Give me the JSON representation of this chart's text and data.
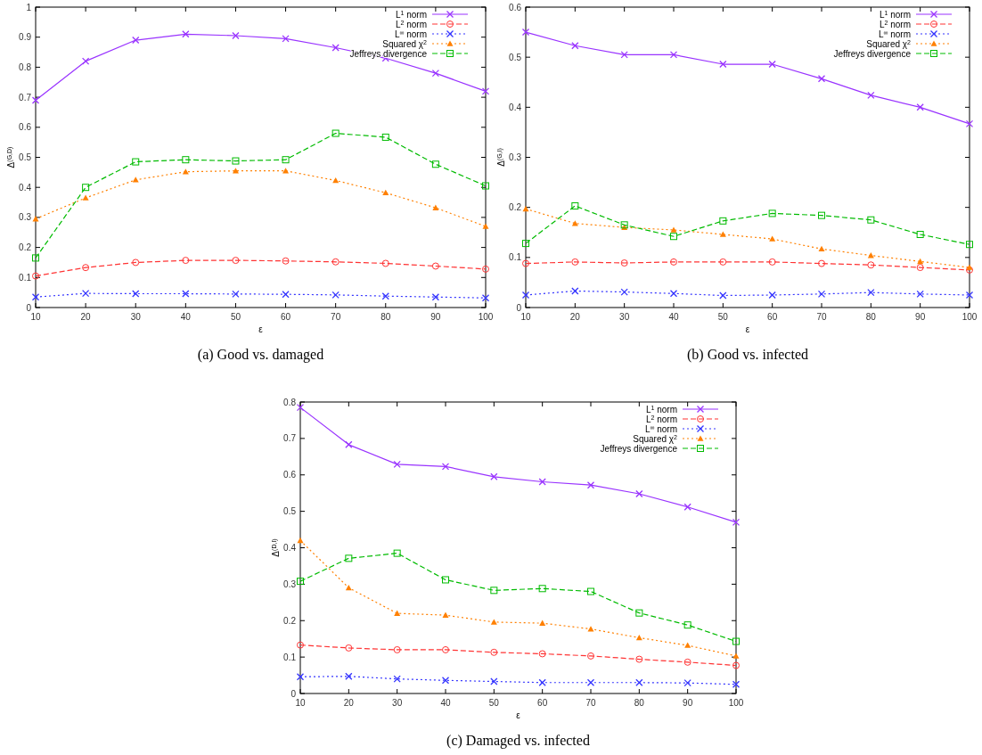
{
  "chart_data": [
    {
      "type": "line",
      "title": "(a) Good vs. damaged",
      "xlabel": "ε",
      "ylabel": "Δ$^{(G,D)}$",
      "x": [
        10,
        20,
        30,
        40,
        50,
        60,
        70,
        80,
        90,
        100
      ],
      "xlim": [
        10,
        100
      ],
      "xticks": [
        10,
        20,
        30,
        40,
        50,
        60,
        70,
        80,
        90,
        100
      ],
      "ylim": [
        0,
        1
      ],
      "yticks": [
        0,
        0.1,
        0.2,
        0.3,
        0.4,
        0.5,
        0.6,
        0.7,
        0.8,
        0.9,
        1
      ],
      "grid": false,
      "legend": "top right",
      "series": [
        {
          "name": "L$^{1}$ norm",
          "color": "#9933ff",
          "marker": "cross",
          "line_style": "solid",
          "values": [
            0.69,
            0.82,
            0.89,
            0.91,
            0.905,
            0.895,
            0.865,
            0.83,
            0.78,
            0.72
          ]
        },
        {
          "name": "L$^{2}$ norm",
          "color": "#ff3333",
          "marker": "circle",
          "line_style": "dashed",
          "values": [
            0.105,
            0.133,
            0.15,
            0.157,
            0.157,
            0.155,
            0.152,
            0.147,
            0.138,
            0.128
          ]
        },
        {
          "name": "L$^{∞}$ norm",
          "color": "#3333ff",
          "marker": "cross",
          "line_style": "dotted",
          "values": [
            0.035,
            0.047,
            0.046,
            0.046,
            0.045,
            0.044,
            0.042,
            0.038,
            0.035,
            0.032
          ]
        },
        {
          "name": "Squared χ$^{2}$",
          "color": "#ff8000",
          "marker": "triangle",
          "line_style": "dotted",
          "values": [
            0.295,
            0.365,
            0.425,
            0.452,
            0.455,
            0.455,
            0.423,
            0.382,
            0.332,
            0.27
          ]
        },
        {
          "name": "Jeffreys divergence",
          "color": "#00bb00",
          "marker": "square",
          "line_style": "dashed",
          "values": [
            0.165,
            0.4,
            0.485,
            0.492,
            0.488,
            0.492,
            0.58,
            0.567,
            0.477,
            0.405
          ]
        }
      ]
    },
    {
      "type": "line",
      "title": "(b) Good vs. infected",
      "xlabel": "ε",
      "ylabel": "Δ$^{(G,I)}$",
      "x": [
        10,
        20,
        30,
        40,
        50,
        60,
        70,
        80,
        90,
        100
      ],
      "xlim": [
        10,
        100
      ],
      "xticks": [
        10,
        20,
        30,
        40,
        50,
        60,
        70,
        80,
        90,
        100
      ],
      "ylim": [
        0,
        0.6
      ],
      "yticks": [
        0,
        0.1,
        0.2,
        0.3,
        0.4,
        0.5,
        0.6
      ],
      "grid": false,
      "legend": "top right",
      "series": [
        {
          "name": "L$^{1}$ norm",
          "color": "#9933ff",
          "marker": "cross",
          "line_style": "solid",
          "values": [
            0.55,
            0.523,
            0.505,
            0.505,
            0.486,
            0.486,
            0.457,
            0.424,
            0.4,
            0.367
          ]
        },
        {
          "name": "L$^{2}$ norm",
          "color": "#ff3333",
          "marker": "circle",
          "line_style": "dashed",
          "values": [
            0.088,
            0.091,
            0.089,
            0.091,
            0.091,
            0.091,
            0.088,
            0.085,
            0.08,
            0.075
          ]
        },
        {
          "name": "L$^{∞}$ norm",
          "color": "#3333ff",
          "marker": "cross",
          "line_style": "dotted",
          "values": [
            0.025,
            0.033,
            0.031,
            0.028,
            0.024,
            0.025,
            0.027,
            0.03,
            0.027,
            0.025
          ]
        },
        {
          "name": "Squared χ$^{2}$",
          "color": "#ff8000",
          "marker": "triangle",
          "line_style": "dotted",
          "values": [
            0.197,
            0.168,
            0.16,
            0.155,
            0.146,
            0.137,
            0.117,
            0.104,
            0.092,
            0.08
          ]
        },
        {
          "name": "Jeffreys divergence",
          "color": "#00bb00",
          "marker": "square",
          "line_style": "dashed",
          "values": [
            0.128,
            0.203,
            0.165,
            0.142,
            0.173,
            0.188,
            0.184,
            0.175,
            0.146,
            0.126
          ]
        }
      ]
    },
    {
      "type": "line",
      "title": "(c) Damaged vs. infected",
      "xlabel": "ε",
      "ylabel": "Δ$^{(D,I)}$",
      "x": [
        10,
        20,
        30,
        40,
        50,
        60,
        70,
        80,
        90,
        100
      ],
      "xlim": [
        10,
        100
      ],
      "xticks": [
        10,
        20,
        30,
        40,
        50,
        60,
        70,
        80,
        90,
        100
      ],
      "ylim": [
        0,
        0.8
      ],
      "yticks": [
        0,
        0.1,
        0.2,
        0.3,
        0.4,
        0.5,
        0.6,
        0.7,
        0.8
      ],
      "grid": false,
      "legend": "top right",
      "series": [
        {
          "name": "L$^{1}$ norm",
          "color": "#9933ff",
          "marker": "cross",
          "line_style": "solid",
          "values": [
            0.785,
            0.683,
            0.629,
            0.623,
            0.595,
            0.581,
            0.572,
            0.548,
            0.512,
            0.47
          ]
        },
        {
          "name": "L$^{2}$ norm",
          "color": "#ff3333",
          "marker": "circle",
          "line_style": "dashed",
          "values": [
            0.133,
            0.125,
            0.12,
            0.12,
            0.113,
            0.109,
            0.103,
            0.094,
            0.086,
            0.077
          ]
        },
        {
          "name": "L$^{∞}$ norm",
          "color": "#3333ff",
          "marker": "cross",
          "line_style": "dotted",
          "values": [
            0.046,
            0.047,
            0.04,
            0.036,
            0.033,
            0.03,
            0.03,
            0.03,
            0.029,
            0.025
          ]
        },
        {
          "name": "Squared χ$^{2}$",
          "color": "#ff8000",
          "marker": "triangle",
          "line_style": "dotted",
          "values": [
            0.42,
            0.29,
            0.22,
            0.215,
            0.196,
            0.193,
            0.177,
            0.153,
            0.132,
            0.103
          ]
        },
        {
          "name": "Jeffreys divergence",
          "color": "#00bb00",
          "marker": "square",
          "line_style": "dashed",
          "values": [
            0.308,
            0.371,
            0.385,
            0.312,
            0.283,
            0.288,
            0.28,
            0.221,
            0.188,
            0.143
          ]
        }
      ]
    }
  ]
}
